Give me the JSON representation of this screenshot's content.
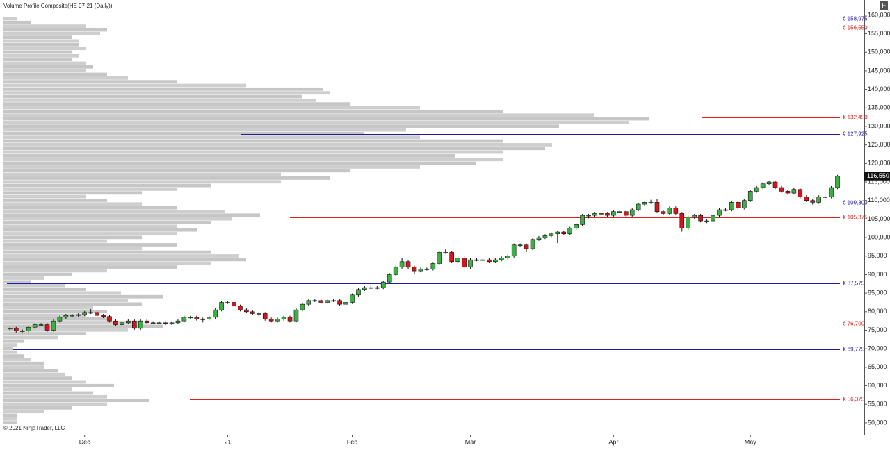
{
  "chart_data": {
    "type": "candlestick",
    "title": "Volume Profile Composite(HE 07-21 (Daily))",
    "copyright": "© 2021 NinjaTrader, LLC",
    "button": "F",
    "up_color": "#3cb043",
    "down_color": "#d7131b",
    "open": [
      75300,
      75500,
      74800,
      74800,
      75800,
      76500,
      76500,
      75000,
      77500,
      78500,
      79000,
      79000,
      79200,
      79800,
      79800,
      79000,
      78700,
      77500,
      76500,
      77000,
      77500,
      75500,
      77500,
      77000,
      77000,
      77000,
      76800,
      77000,
      77500,
      78500,
      78500,
      78000,
      78000,
      78500,
      80500,
      82500,
      82500,
      81500,
      80500,
      80000,
      79500,
      79500,
      78000,
      77500,
      78000,
      78500,
      77500,
      80500,
      82000,
      83000,
      83000,
      82500,
      83000,
      83000,
      82000,
      82500,
      84500,
      86000,
      86500,
      86500,
      86500,
      88000,
      90000,
      92000,
      93500,
      92000,
      91000,
      91500,
      91500,
      93000,
      96000,
      96000,
      93500,
      94500,
      92000,
      94000,
      94000,
      94000,
      93500,
      94000,
      94500,
      95000,
      98000,
      98000,
      97000,
      99500,
      100000,
      100500,
      101000,
      101500,
      101000,
      102500,
      103500,
      106000,
      106000,
      106500,
      106500,
      106000,
      107000,
      107000,
      106000,
      107500,
      109000,
      109500,
      109500,
      107000,
      106500,
      108000,
      106500,
      102500,
      105500,
      106000,
      104500,
      104500,
      106000,
      107500,
      107500,
      109500,
      108000,
      110000,
      112500,
      113500,
      114500,
      115000,
      113500,
      112500,
      112000,
      113000,
      111000,
      110000,
      109500,
      111000,
      111000,
      113500
    ],
    "high": [
      75900,
      75900,
      75200,
      76200,
      76900,
      76900,
      76900,
      77900,
      78900,
      79400,
      79400,
      79600,
      80200,
      80700,
      80200,
      79400,
      79100,
      77900,
      77400,
      77900,
      77900,
      77900,
      77900,
      77400,
      77400,
      77400,
      77400,
      77900,
      78900,
      78900,
      78900,
      78400,
      78900,
      80900,
      82900,
      82900,
      82900,
      81900,
      80900,
      80400,
      79900,
      79900,
      78400,
      78400,
      78900,
      78900,
      80900,
      82400,
      83400,
      83400,
      83400,
      83400,
      83400,
      83400,
      82900,
      84900,
      86400,
      86900,
      87300,
      86900,
      88400,
      90400,
      92400,
      94500,
      93900,
      92400,
      91900,
      91900,
      93400,
      96400,
      96800,
      96400,
      94900,
      94900,
      94400,
      94400,
      94400,
      94400,
      94400,
      94900,
      95400,
      98400,
      98400,
      98400,
      99900,
      100400,
      100900,
      101400,
      101900,
      101900,
      102900,
      103900,
      106400,
      106400,
      106900,
      106900,
      106900,
      107400,
      107400,
      107400,
      107900,
      109400,
      109900,
      110200,
      110500,
      107400,
      108400,
      108400,
      106900,
      105900,
      106400,
      106400,
      104900,
      106400,
      107900,
      107900,
      109900,
      109900,
      110400,
      112900,
      113900,
      114900,
      115400,
      115400,
      113900,
      112900,
      113400,
      113400,
      111400,
      110400,
      111400,
      111400,
      113900,
      116900
    ],
    "low": [
      74900,
      74400,
      74400,
      74400,
      75400,
      76100,
      74600,
      74600,
      77100,
      78100,
      78600,
      78600,
      78800,
      79400,
      78600,
      78300,
      77100,
      76100,
      76100,
      76600,
      75100,
      75100,
      76600,
      76600,
      76600,
      76400,
      76400,
      76600,
      77100,
      78100,
      77600,
      77100,
      77600,
      78100,
      80100,
      82100,
      81100,
      80100,
      79600,
      79100,
      78900,
      77600,
      77100,
      77100,
      77600,
      77100,
      77100,
      80100,
      81600,
      82600,
      82100,
      82100,
      82600,
      81600,
      81600,
      82100,
      84100,
      85600,
      86100,
      86100,
      86100,
      87600,
      89600,
      91600,
      91600,
      90100,
      90600,
      91100,
      91100,
      92600,
      95600,
      93100,
      93100,
      91600,
      91600,
      93600,
      93600,
      93100,
      93100,
      93600,
      94100,
      94600,
      97600,
      96100,
      96600,
      99100,
      99600,
      100100,
      98500,
      100600,
      100600,
      102100,
      103100,
      105200,
      105600,
      105100,
      105600,
      105600,
      106600,
      105300,
      105600,
      107100,
      108600,
      109100,
      106600,
      106100,
      106100,
      106100,
      101600,
      102100,
      105100,
      104100,
      103900,
      104100,
      105600,
      107100,
      107100,
      107300,
      107600,
      109600,
      112100,
      113100,
      114100,
      113100,
      112100,
      111600,
      111600,
      110600,
      109600,
      108900,
      109100,
      110600,
      110600,
      113100
    ],
    "close": [
      75500,
      74800,
      74800,
      75800,
      76500,
      76500,
      75000,
      77500,
      78500,
      79000,
      79000,
      79200,
      79800,
      79800,
      79000,
      78700,
      77500,
      76500,
      77000,
      77500,
      75500,
      77500,
      77000,
      77000,
      77000,
      76800,
      77000,
      77500,
      78500,
      78500,
      78000,
      78000,
      78500,
      80500,
      82500,
      82500,
      81500,
      80500,
      80000,
      79500,
      79500,
      78000,
      77500,
      78000,
      78500,
      77500,
      80500,
      82000,
      83000,
      83000,
      82500,
      83000,
      83000,
      82000,
      82500,
      84500,
      86000,
      86500,
      86500,
      86500,
      88000,
      90000,
      92000,
      93500,
      92000,
      91000,
      91500,
      91500,
      93000,
      96000,
      96000,
      93500,
      94500,
      92000,
      94000,
      94000,
      94000,
      93500,
      94000,
      94500,
      95000,
      98000,
      98000,
      97000,
      99500,
      100000,
      100500,
      101000,
      101500,
      101000,
      102500,
      103500,
      106000,
      106000,
      106500,
      106500,
      106000,
      107000,
      107000,
      106000,
      107500,
      109000,
      109500,
      109500,
      107000,
      106500,
      108000,
      106500,
      102500,
      105500,
      106000,
      104500,
      104500,
      106000,
      107500,
      107500,
      109500,
      108000,
      110000,
      112500,
      113500,
      114500,
      115000,
      113500,
      112500,
      112000,
      113000,
      111000,
      110000,
      109500,
      111000,
      111000,
      113500,
      116550
    ],
    "last_price_label": "116,550",
    "xlim": [
      -1.6,
      137.3
    ],
    "xticks": [
      {
        "value": 12,
        "label": "Dec"
      },
      {
        "value": 35,
        "label": "21"
      },
      {
        "value": 55,
        "label": "Feb"
      },
      {
        "value": 74,
        "label": "Mar"
      },
      {
        "value": 97,
        "label": "Apr"
      },
      {
        "value": 119,
        "label": "May"
      }
    ],
    "ylim": [
      46800,
      164100
    ],
    "yticks": [
      {
        "value": 50000,
        "label": "50,000"
      },
      {
        "value": 55000,
        "label": "55,000"
      },
      {
        "value": 60000,
        "label": "60,000"
      },
      {
        "value": 65000,
        "label": "65,000"
      },
      {
        "value": 70000,
        "label": "70,000"
      },
      {
        "value": 75000,
        "label": "75,000"
      },
      {
        "value": 80000,
        "label": "80,000"
      },
      {
        "value": 85000,
        "label": "85,000"
      },
      {
        "value": 90000,
        "label": "90,000"
      },
      {
        "value": 95000,
        "label": "95,000"
      },
      {
        "value": 100000,
        "label": "100,000"
      },
      {
        "value": 105000,
        "label": "105,000"
      },
      {
        "value": 110000,
        "label": "110,000"
      },
      {
        "value": 115000,
        "label": "115,000"
      },
      {
        "value": 120000,
        "label": "120,000"
      },
      {
        "value": 125000,
        "label": "125,000"
      },
      {
        "value": 130000,
        "label": "130,000"
      },
      {
        "value": 135000,
        "label": "135,000"
      },
      {
        "value": 140000,
        "label": "140,000"
      },
      {
        "value": 145000,
        "label": "145,000"
      },
      {
        "value": 150000,
        "label": "150,000"
      },
      {
        "value": 155000,
        "label": "155,000"
      },
      {
        "value": 160000,
        "label": "160,000"
      }
    ],
    "levels": [
      {
        "value": 158975,
        "label": "€ 158,975",
        "color": "#1c1ca8"
      },
      {
        "value": 156550,
        "label": "€ 156,550",
        "color": "#e0201c"
      },
      {
        "value": 132450,
        "label": "€ 132,450",
        "color": "#e0201c"
      },
      {
        "value": 127925,
        "label": "€ 127,925",
        "color": "#1c1ca8"
      },
      {
        "value": 109300,
        "label": "€ 109,300",
        "color": "#1c1ca8"
      },
      {
        "value": 105375,
        "label": "€ 105,375",
        "color": "#e0201c"
      },
      {
        "value": 87575,
        "label": "€ 87,575",
        "color": "#1c1ca8"
      },
      {
        "value": 76700,
        "label": "€ 76,700",
        "color": "#e0201c"
      },
      {
        "value": 69775,
        "label": "€ 69,775",
        "color": "#1c1ca8"
      },
      {
        "value": 56375,
        "label": "€ 56,375",
        "color": "#e0201c"
      }
    ],
    "volume_profile": {
      "color": "#c6c6c6",
      "prices": [
        50000,
        51000,
        52000,
        53000,
        54000,
        55000,
        56000,
        57000,
        58000,
        59000,
        60000,
        61000,
        62000,
        63000,
        64000,
        65000,
        66000,
        67000,
        68000,
        69000,
        70000,
        71000,
        72000,
        73000,
        74000,
        75000,
        76000,
        77000,
        78000,
        79000,
        80000,
        81000,
        82000,
        83000,
        84000,
        85000,
        86000,
        87000,
        88000,
        89000,
        90000,
        91000,
        92000,
        93000,
        94000,
        95000,
        96000,
        97000,
        98000,
        99000,
        100000,
        101000,
        102000,
        103000,
        104000,
        105000,
        106000,
        107000,
        108000,
        109000,
        110000,
        111000,
        112000,
        113000,
        114000,
        115000,
        116000,
        117000,
        118000,
        119000,
        120000,
        121000,
        122000,
        123000,
        124000,
        125000,
        126000,
        127000,
        128000,
        129000,
        130000,
        131000,
        132000,
        133000,
        134000,
        135000,
        136000,
        137000,
        138000,
        139000,
        140000,
        141000,
        142000,
        143000,
        144000,
        145000,
        146000,
        147000,
        148000,
        149000,
        150000,
        151000,
        152000,
        153000,
        154000,
        155000,
        156000,
        157000,
        158000,
        159000
      ],
      "volumes": [
        20,
        20,
        20,
        60,
        100,
        150,
        210,
        150,
        130,
        100,
        160,
        120,
        100,
        90,
        80,
        60,
        60,
        40,
        30,
        20,
        15,
        20,
        30,
        80,
        120,
        180,
        230,
        200,
        150,
        120,
        150,
        130,
        200,
        180,
        230,
        170,
        120,
        90,
        40,
        60,
        100,
        150,
        250,
        300,
        350,
        340,
        300,
        200,
        250,
        150,
        200,
        250,
        280,
        250,
        300,
        330,
        370,
        320,
        250,
        200,
        150,
        120,
        200,
        250,
        300,
        400,
        470,
        400,
        500,
        600,
        680,
        720,
        650,
        720,
        780,
        790,
        720,
        600,
        520,
        580,
        800,
        900,
        930,
        850,
        720,
        600,
        500,
        450,
        430,
        470,
        460,
        350,
        250,
        180,
        150,
        120,
        130,
        120,
        100,
        110,
        100,
        120,
        110,
        110,
        100,
        140,
        150,
        120,
        40,
        20
      ],
      "xlim": [
        0,
        1243
      ]
    }
  }
}
